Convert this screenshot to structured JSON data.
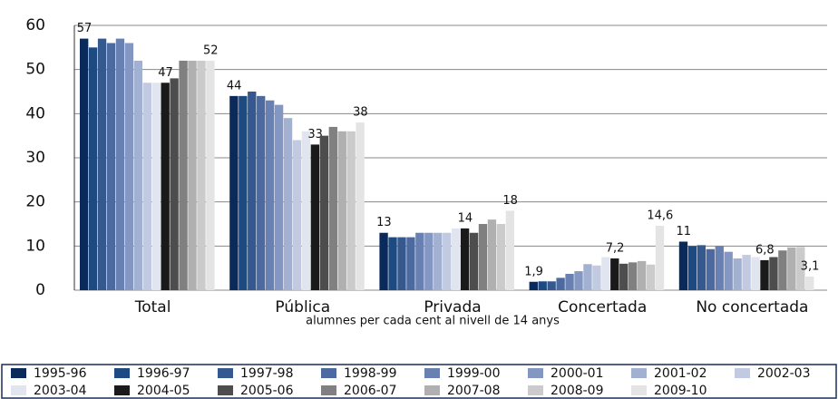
{
  "chart_data": {
    "type": "bar",
    "x_label": "alumnes per cada cent al nivell de 14 anys",
    "categories": [
      "Total",
      "Pública",
      "Privada",
      "Concertada",
      "No concertada"
    ],
    "ylim": [
      0,
      60
    ],
    "yticks": [
      0,
      10,
      20,
      30,
      40,
      50,
      60
    ],
    "grid": true,
    "series": [
      {
        "name": "1995-96",
        "color": "#0b2a5c",
        "values": [
          57,
          44,
          13,
          1.9,
          11
        ],
        "value_labels": [
          "57",
          "44",
          "13",
          "1,9",
          "11"
        ]
      },
      {
        "name": "1996-97",
        "color": "#1d4a80",
        "values": [
          55,
          44,
          12,
          2,
          10
        ]
      },
      {
        "name": "1997-98",
        "color": "#35598f",
        "values": [
          57,
          45,
          12,
          2,
          10.2
        ]
      },
      {
        "name": "1998-99",
        "color": "#4d6aa0",
        "values": [
          56,
          44,
          12,
          2.8,
          9.3
        ]
      },
      {
        "name": "1999-00",
        "color": "#6880b2",
        "values": [
          57,
          43,
          13,
          3.7,
          10
        ]
      },
      {
        "name": "2000-01",
        "color": "#8497c2",
        "values": [
          56,
          42,
          13,
          4.3,
          8.7
        ]
      },
      {
        "name": "2001-02",
        "color": "#a2b0d2",
        "values": [
          52,
          39,
          13,
          5.9,
          7.2
        ]
      },
      {
        "name": "2002-03",
        "color": "#c2cae2",
        "values": [
          47,
          34,
          13,
          5.6,
          8
        ]
      },
      {
        "name": "2003-04",
        "color": "#e1e5f0",
        "values": [
          47,
          36,
          14,
          7.5,
          7.5
        ]
      },
      {
        "name": "2004-05",
        "color": "#1a1a1a",
        "values": [
          47,
          33,
          14,
          7.2,
          6.8
        ],
        "value_labels": [
          "47",
          "33",
          "14",
          "7,2",
          "6,8"
        ]
      },
      {
        "name": "2005-06",
        "color": "#4d4d4d",
        "values": [
          48,
          35,
          13,
          6,
          7.5
        ]
      },
      {
        "name": "2006-07",
        "color": "#808080",
        "values": [
          52,
          37,
          15,
          6.3,
          9
        ]
      },
      {
        "name": "2007-08",
        "color": "#b0b0b0",
        "values": [
          52,
          36,
          16,
          6.6,
          9.7
        ]
      },
      {
        "name": "2008-09",
        "color": "#cbcbcb",
        "values": [
          52,
          36,
          15,
          5.8,
          9.8
        ]
      },
      {
        "name": "2009-10",
        "color": "#e4e4e4",
        "values": [
          52,
          38,
          18,
          14.6,
          3.1
        ],
        "value_labels": [
          "52",
          "38",
          "18",
          "14,6",
          "3,1"
        ]
      }
    ]
  }
}
